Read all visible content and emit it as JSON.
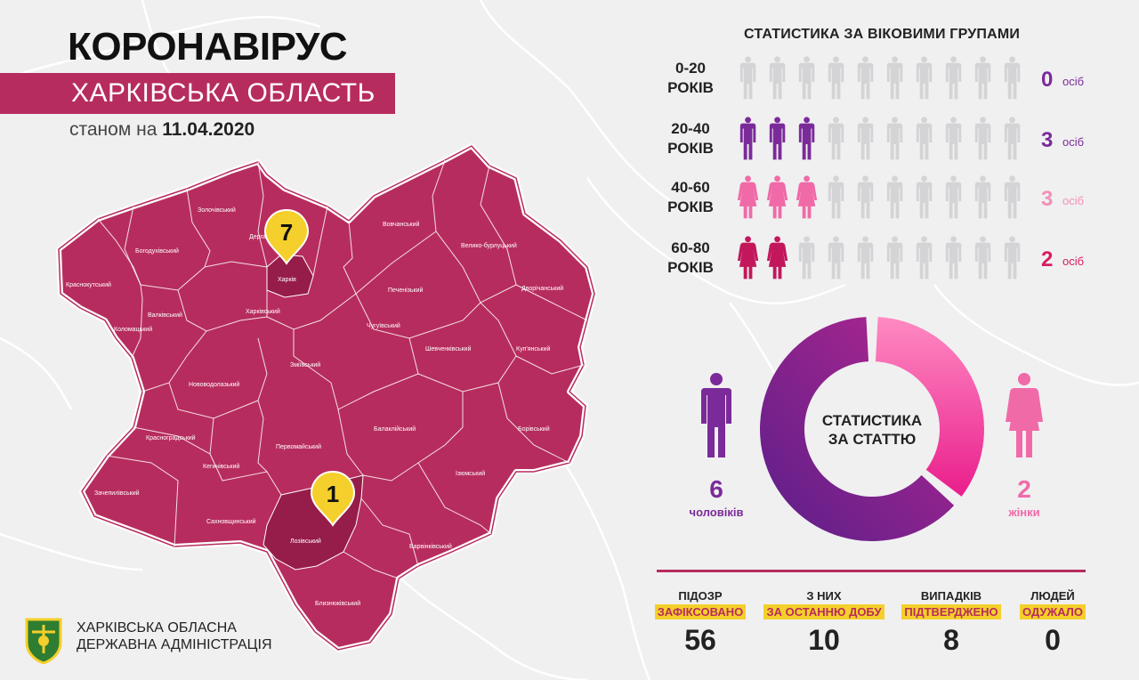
{
  "header": {
    "title": "КОРОНАВІРУС",
    "region": "ХАРКІВСЬКА ОБЛАСТЬ",
    "date_prefix": "станом на",
    "date": "11.04.2020"
  },
  "colors": {
    "oblast": "#b72c5e",
    "highlight_district": "#961c4a",
    "pin": "#f5cf2b",
    "male": "#7b2b99",
    "female_40_60": "#f06aa8",
    "female_60_80": "#c2185b",
    "grey_figure": "#d4d4d6"
  },
  "map": {
    "districts": [
      "Золочівський",
      "Дергачівський",
      "Богодухівський",
      "Вовчанський",
      "Велико-бурлуцький",
      "Краснокутський",
      "Харків",
      "Печенізький",
      "Дворічанський",
      "Валківський",
      "Харківський",
      "Коломацький",
      "Чугуївський",
      "Шевченківський",
      "Куп'янський",
      "Зміївський",
      "Нововодолазький",
      "Балаклійський",
      "Борівський",
      "Красноградський",
      "Первомайський",
      "Кегичівський",
      "Ізюмський",
      "Зачепилівський",
      "Сахновщинський",
      "Лозівський",
      "Барвінківський",
      "Близнюківський"
    ],
    "pins": [
      {
        "label": "7",
        "district": "Харків"
      },
      {
        "label": "1",
        "district": "Лозівський"
      }
    ]
  },
  "organization": {
    "line1": "ХАРКІВСЬКА ОБЛАСНА",
    "line2": "ДЕРЖАВНА АДМІНІСТРАЦІЯ"
  },
  "age_stats": {
    "title": "СТАТИСТИКА ЗА ВІКОВИМИ ГРУПАМИ",
    "unit": "осіб",
    "groups": [
      {
        "range": "0-20",
        "suffix": "РОКІВ",
        "count": "0",
        "filled": 0,
        "figure": "male",
        "color": "#7b2b99",
        "count_color": "#7b2b99"
      },
      {
        "range": "20-40",
        "suffix": "РОКІВ",
        "count": "3",
        "filled": 3,
        "figure": "male",
        "color": "#7b2b99",
        "count_color": "#7b2b99"
      },
      {
        "range": "40-60",
        "suffix": "РОКІВ",
        "count": "3",
        "filled": 3,
        "figure": "female",
        "color": "#f06aa8",
        "count_color": "#f48fb8"
      },
      {
        "range": "60-80",
        "suffix": "РОКІВ",
        "count": "2",
        "filled": 2,
        "figure": "female",
        "color": "#c2185b",
        "count_color": "#d81b60"
      }
    ],
    "figures_per_row": 10
  },
  "gender_stats": {
    "title_line1": "СТАТИСТИКА",
    "title_line2": "ЗА СТАТТЮ",
    "male_count": "6",
    "male_label": "чоловіків",
    "female_count": "2",
    "female_label": "жінки",
    "male_fraction": 0.75,
    "female_fraction": 0.25
  },
  "totals": [
    {
      "top": "ПІДОЗР",
      "highlight": "ЗАФІКСОВАНО",
      "value": "56"
    },
    {
      "top": "З НИХ",
      "highlight": "ЗА ОСТАННЮ ДОБУ",
      "value": "10"
    },
    {
      "top": "ВИПАДКІВ",
      "highlight": "ПІДТВЕРДЖЕНО",
      "value": "8"
    },
    {
      "top": "ЛЮДЕЙ",
      "highlight": "ОДУЖАЛО",
      "value": "0"
    }
  ]
}
